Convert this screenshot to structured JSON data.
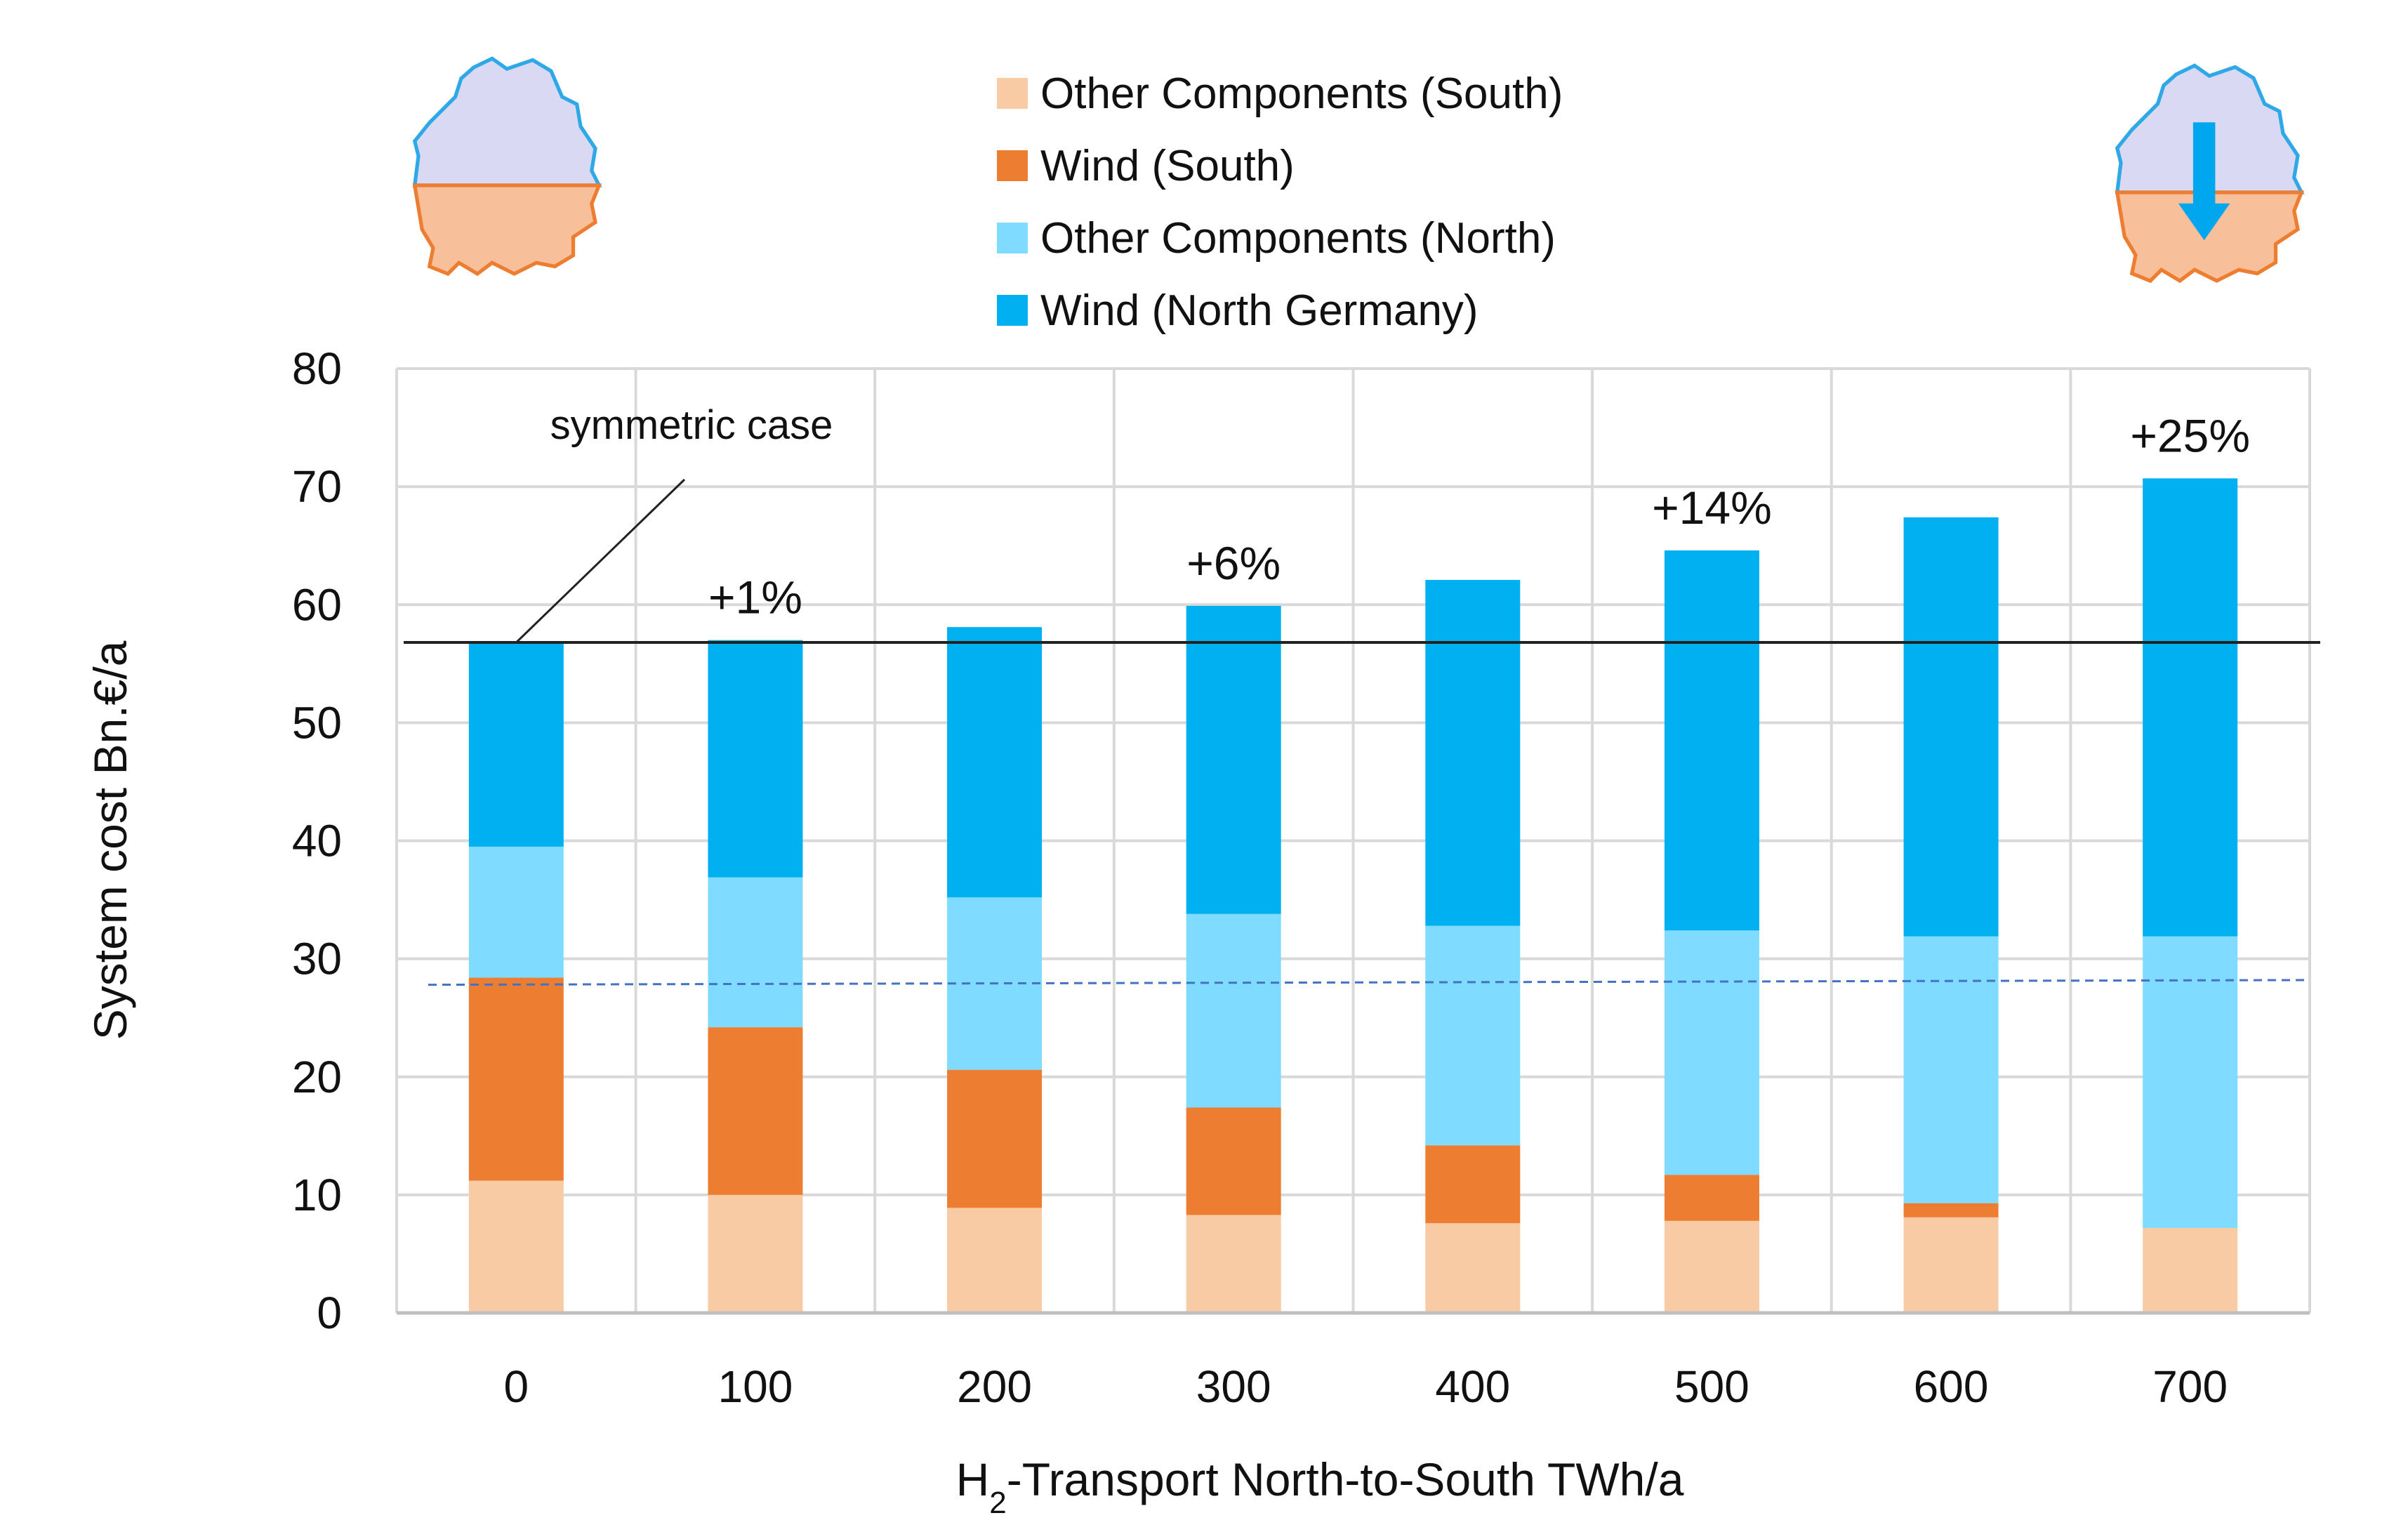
{
  "chart_data": {
    "type": "bar",
    "stacked": true,
    "title": "",
    "categories": [
      "0",
      "100",
      "200",
      "300",
      "400",
      "500",
      "600",
      "700"
    ],
    "series": [
      {
        "name": "Other Components (South)",
        "color": "#F8CBA4",
        "values": [
          11.2,
          10.0,
          8.9,
          8.3,
          7.6,
          7.8,
          8.1,
          7.2
        ]
      },
      {
        "name": "Wind (South)",
        "color": "#ED7D31",
        "values": [
          17.2,
          14.2,
          11.7,
          9.1,
          6.6,
          3.9,
          1.2,
          0
        ]
      },
      {
        "name": "Other Components (North)",
        "color": "#7FDBFF",
        "values": [
          11.1,
          12.7,
          14.6,
          16.4,
          18.6,
          20.7,
          22.6,
          24.7
        ]
      },
      {
        "name": "Wind (North Germany)",
        "color": "#00B0F0",
        "values": [
          17.3,
          20.1,
          22.9,
          26.1,
          29.3,
          32.2,
          35.5,
          38.8
        ]
      }
    ],
    "legend_order": [
      0,
      1,
      2,
      3
    ],
    "xlabel_parts": {
      "pre": "H",
      "sub": "2",
      "post": "-Transport  North-to-South TWh/a"
    },
    "ylabel": "System cost  Bn.€/a",
    "ylim": [
      0,
      80
    ],
    "yticks": [
      0,
      10,
      20,
      30,
      40,
      50,
      60,
      70,
      80
    ],
    "grid": true,
    "legend_position": "top-center",
    "reference_line": {
      "label": "symmetric case",
      "value": 56.8
    },
    "dashed_line": {
      "value_start": 27.8,
      "value_end": 28.2
    },
    "annotations": [
      {
        "category": "100",
        "text": "+1%"
      },
      {
        "category": "300",
        "text": "+6%"
      },
      {
        "category": "500",
        "text": "+14%"
      },
      {
        "category": "700",
        "text": "+25%"
      }
    ]
  },
  "icons": {
    "map_left": "germany-map-icon",
    "map_right": "germany-map-arrow-icon",
    "north_color": "#D9D9F3",
    "south_color": "#F8C09A",
    "border_north": "#2FA8E8",
    "border_south": "#ED7D31",
    "arrow_color": "#00A6EE"
  }
}
